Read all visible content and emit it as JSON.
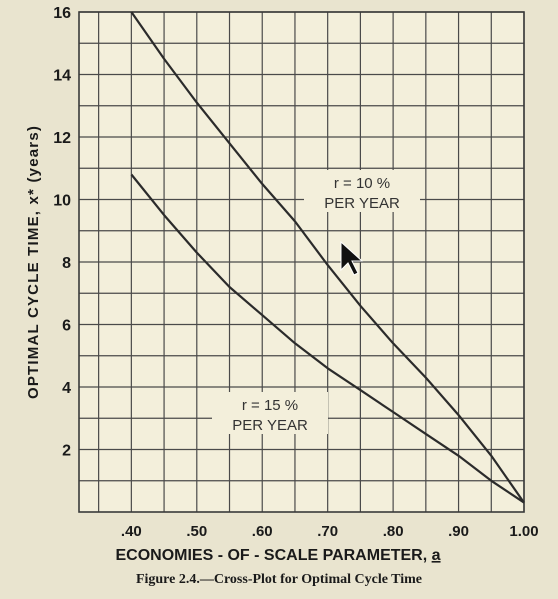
{
  "chart_data": {
    "type": "line",
    "xlabel": "ECONOMIES - OF - SCALE PARAMETER,",
    "xlabel_symbol": "a",
    "ylabel": "OPTIMAL CYCLE TIME, x* (years)",
    "xlim": [
      0.32,
      1.0
    ],
    "ylim": [
      0,
      16
    ],
    "x_ticks": [
      0.4,
      0.5,
      0.6,
      0.7,
      0.8,
      0.9,
      1.0
    ],
    "x_tick_labels": [
      ".40",
      ".50",
      ".60",
      ".70",
      ".80",
      ".90",
      "1.00"
    ],
    "y_ticks": [
      2,
      4,
      6,
      8,
      10,
      12,
      14,
      16
    ],
    "y_tick_labels": [
      "2",
      "4",
      "6",
      "8",
      "10",
      "12",
      "14",
      "16"
    ],
    "grid": true,
    "grid_color": "#4a4a4a",
    "line_color": "#2b2b2b",
    "background_color": "#f3efdb",
    "series": [
      {
        "name": "r = 10 % PER YEAR",
        "label_lines": [
          "r = 10 %",
          "PER YEAR"
        ],
        "x": [
          0.4,
          0.45,
          0.5,
          0.55,
          0.6,
          0.65,
          0.7,
          0.75,
          0.8,
          0.85,
          0.9,
          0.95,
          1.0
        ],
        "y": [
          16.0,
          14.5,
          13.1,
          11.8,
          10.5,
          9.3,
          7.9,
          6.6,
          5.4,
          4.3,
          3.1,
          1.8,
          0.3
        ]
      },
      {
        "name": "r = 15 % PER YEAR",
        "label_lines": [
          "r = 15 %",
          "PER YEAR"
        ],
        "x": [
          0.4,
          0.45,
          0.5,
          0.55,
          0.6,
          0.65,
          0.7,
          0.75,
          0.8,
          0.85,
          0.9,
          0.95,
          1.0
        ],
        "y": [
          10.8,
          9.5,
          8.3,
          7.2,
          6.3,
          5.4,
          4.6,
          3.9,
          3.2,
          2.5,
          1.8,
          1.0,
          0.3
        ]
      }
    ]
  },
  "caption": "Figure 2.4.—Cross-Plot for Optimal Cycle Time"
}
